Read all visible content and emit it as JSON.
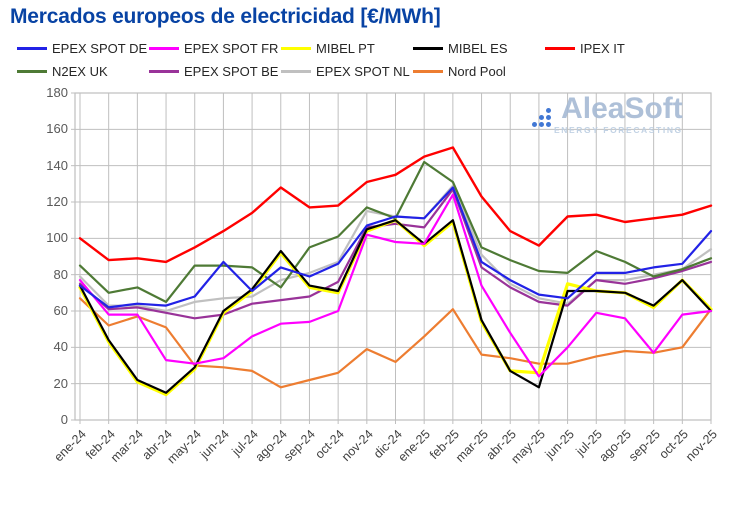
{
  "title": "Mercados europeos de electricidad [€/MWh]",
  "watermark": {
    "name": "AleaSoft",
    "tagline": "ENERGY FORECASTING"
  },
  "colors": {
    "title": "#0843a4",
    "grid": "#bfbfbf",
    "axis_border": "#bfbfbf",
    "tick_label": "#595959",
    "xtick_label": "#404040",
    "legend_text": "#262626",
    "watermark_name": "#a6bad4",
    "watermark_tagline": "#bccee2",
    "watermark_dots": "#2e6ad0"
  },
  "chart_data": {
    "type": "line",
    "title": "Mercados europeos de electricidad [€/MWh]",
    "unit": "€/MWh",
    "grid": true,
    "legend_position": "top",
    "ylim": [
      0,
      180
    ],
    "y_ticks": [
      0,
      20,
      40,
      60,
      80,
      100,
      120,
      140,
      160,
      180
    ],
    "x_categories": [
      "ene-24",
      "feb-24",
      "mar-24",
      "abr-24",
      "may-24",
      "jun-24",
      "jul-24",
      "ago-24",
      "sep-24",
      "oct-24",
      "nov-24",
      "dic-24",
      "ene-25",
      "feb-25",
      "mar-25",
      "abr-25",
      "may-25",
      "jun-25",
      "jul-25",
      "ago-25",
      "sep-25",
      "oct-25",
      "nov-25"
    ],
    "series": [
      {
        "name": "EPEX SPOT DE",
        "color": "#2222e6",
        "values": [
          74,
          62,
          64,
          63,
          68,
          87,
          71,
          84,
          79,
          86,
          107,
          112,
          111,
          128,
          87,
          77,
          69,
          67,
          81,
          81,
          84,
          86,
          104
        ]
      },
      {
        "name": "EPEX SPOT FR",
        "color": "#ff00ff",
        "values": [
          77,
          58,
          58,
          33,
          31,
          34,
          46,
          53,
          54,
          60,
          102,
          98,
          97,
          124,
          74,
          48,
          24,
          40,
          59,
          56,
          37,
          58,
          60
        ]
      },
      {
        "name": "MIBEL PT",
        "color": "#ffff00",
        "values": [
          73,
          43,
          21,
          14,
          28,
          59,
          71,
          92,
          73,
          70,
          104,
          110,
          96,
          109,
          54,
          27,
          26,
          75,
          71,
          70,
          62,
          77,
          61
        ]
      },
      {
        "name": "MIBEL ES",
        "color": "#000000",
        "values": [
          74,
          44,
          22,
          15,
          29,
          60,
          72,
          93,
          74,
          71,
          105,
          110,
          97,
          110,
          55,
          27,
          18,
          71,
          71,
          70,
          63,
          77,
          60
        ]
      },
      {
        "name": "IPEX IT",
        "color": "#ff0000",
        "values": [
          100,
          88,
          89,
          87,
          95,
          104,
          114,
          128,
          117,
          118,
          131,
          135,
          145,
          150,
          123,
          104,
          96,
          112,
          113,
          109,
          111,
          113,
          118
        ]
      },
      {
        "name": "N2EX UK",
        "color": "#4e7a35",
        "values": [
          85,
          70,
          73,
          65,
          85,
          85,
          84,
          73,
          95,
          101,
          117,
          111,
          142,
          131,
          95,
          88,
          82,
          81,
          93,
          87,
          79,
          83,
          89
        ]
      },
      {
        "name": "EPEX SPOT BE",
        "color": "#993399",
        "values": [
          75,
          61,
          62,
          59,
          56,
          58,
          64,
          66,
          68,
          76,
          106,
          108,
          106,
          127,
          84,
          73,
          65,
          63,
          77,
          75,
          78,
          82,
          87
        ]
      },
      {
        "name": "EPEX SPOT NL",
        "color": "#c0c0c0",
        "values": [
          79,
          63,
          63,
          60,
          65,
          67,
          68,
          77,
          81,
          87,
          115,
          112,
          111,
          129,
          91,
          75,
          67,
          64,
          77,
          77,
          80,
          83,
          94
        ]
      },
      {
        "name": "Nord Pool",
        "color": "#ed7d31",
        "values": [
          67,
          52,
          57,
          51,
          30,
          29,
          27,
          18,
          22,
          26,
          39,
          32,
          46,
          61,
          36,
          34,
          31,
          31,
          35,
          38,
          37,
          40,
          61
        ]
      }
    ]
  }
}
